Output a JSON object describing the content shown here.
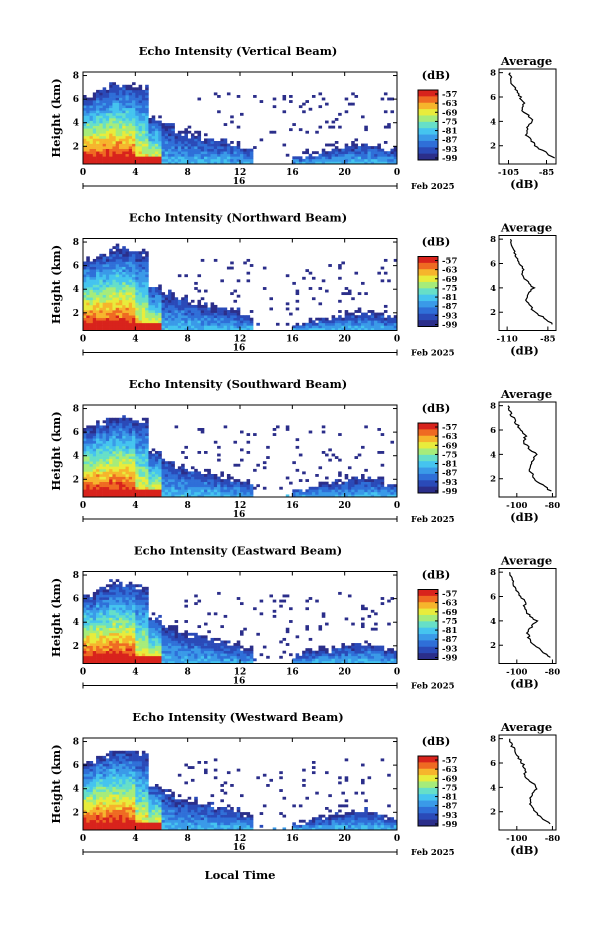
{
  "figure": {
    "xlabel": "Local Time",
    "date_label": "Feb 2025",
    "day_label": "16"
  },
  "chart_data": [
    {
      "type": "heatmap",
      "title": "Echo Intensity (Vertical Beam)",
      "ylabel": "Height (km)",
      "x_ticks": [
        "0",
        "4",
        "8",
        "12",
        "16",
        "20",
        "0"
      ],
      "xlim": [
        0,
        24
      ],
      "y_ticks": [
        "2",
        "4",
        "6",
        "8"
      ],
      "ylim": [
        0.5,
        8.3
      ],
      "colorbar": {
        "unit": "(dB)",
        "ticks": [
          "-57",
          "-63",
          "-69",
          "-75",
          "-81",
          "-87",
          "-93",
          "-99"
        ]
      },
      "average": {
        "title": "Average",
        "xlabel": "(dB)",
        "x_ticks": [
          "-105",
          "-85"
        ],
        "xlim": [
          -110,
          -80
        ],
        "y_ticks": [
          "2",
          "4",
          "6",
          "8"
        ],
        "profile": [
          [
            -81,
            1.0
          ],
          [
            -86,
            1.5
          ],
          [
            -91,
            2.0
          ],
          [
            -93,
            2.5
          ],
          [
            -96,
            3.0
          ],
          [
            -95,
            3.5
          ],
          [
            -92,
            4.0
          ],
          [
            -95,
            4.5
          ],
          [
            -98,
            5.0
          ],
          [
            -97,
            5.5
          ],
          [
            -99,
            6.0
          ],
          [
            -101,
            6.5
          ],
          [
            -103,
            7.0
          ],
          [
            -104,
            7.5
          ],
          [
            -104,
            8.0
          ]
        ]
      },
      "echo_top_km": [
        6.3,
        6.8,
        7.3,
        7.2,
        7.0,
        4.4,
        3.9,
        3.2,
        3.0,
        2.7,
        2.5,
        2.3,
        1.8,
        0,
        0,
        0,
        1.1,
        1.3,
        1.6,
        1.9,
        2.0,
        2.2,
        2.0,
        1.7
      ]
    },
    {
      "type": "heatmap",
      "title": "Echo Intensity (Northward Beam)",
      "ylabel": "Height (km)",
      "x_ticks": [
        "0",
        "4",
        "8",
        "12",
        "16",
        "20",
        "0"
      ],
      "xlim": [
        0,
        24
      ],
      "y_ticks": [
        "2",
        "4",
        "6",
        "8"
      ],
      "ylim": [
        0.5,
        8.3
      ],
      "colorbar": {
        "unit": "(dB)",
        "ticks": [
          "-57",
          "-63",
          "-69",
          "-75",
          "-81",
          "-87",
          "-93",
          "-99"
        ]
      },
      "average": {
        "title": "Average",
        "xlabel": "(dB)",
        "x_ticks": [
          "-110",
          "-85"
        ],
        "xlim": [
          -115,
          -80
        ],
        "y_ticks": [
          "2",
          "4",
          "6",
          "8"
        ],
        "profile": [
          [
            -82,
            1.0
          ],
          [
            -87,
            1.5
          ],
          [
            -93,
            2.0
          ],
          [
            -96,
            2.5
          ],
          [
            -99,
            3.0
          ],
          [
            -97,
            3.5
          ],
          [
            -94,
            4.0
          ],
          [
            -97,
            4.5
          ],
          [
            -101,
            5.0
          ],
          [
            -100,
            5.5
          ],
          [
            -102,
            6.0
          ],
          [
            -104,
            6.5
          ],
          [
            -106,
            7.0
          ],
          [
            -107,
            7.5
          ],
          [
            -108,
            8.0
          ]
        ]
      },
      "echo_top_km": [
        6.5,
        7.0,
        7.5,
        7.4,
        7.1,
        4.3,
        3.8,
        3.3,
        3.0,
        2.6,
        2.4,
        2.2,
        1.7,
        0,
        0,
        0,
        1.0,
        1.3,
        1.5,
        1.8,
        1.9,
        2.1,
        2.0,
        1.6
      ]
    },
    {
      "type": "heatmap",
      "title": "Echo Intensity (Southward Beam)",
      "ylabel": "Height (km)",
      "x_ticks": [
        "0",
        "4",
        "8",
        "12",
        "16",
        "20",
        "0"
      ],
      "xlim": [
        0,
        24
      ],
      "y_ticks": [
        "2",
        "4",
        "6",
        "8"
      ],
      "ylim": [
        0.5,
        8.3
      ],
      "colorbar": {
        "unit": "(dB)",
        "ticks": [
          "-57",
          "-63",
          "-69",
          "-75",
          "-81",
          "-87",
          "-93",
          "-99"
        ]
      },
      "average": {
        "title": "Average",
        "xlabel": "(dB)",
        "x_ticks": [
          "-100",
          "-80"
        ],
        "xlim": [
          -110,
          -78
        ],
        "y_ticks": [
          "2",
          "4",
          "6",
          "8"
        ],
        "profile": [
          [
            -81,
            1.0
          ],
          [
            -86,
            1.5
          ],
          [
            -90,
            2.0
          ],
          [
            -92,
            2.5
          ],
          [
            -93,
            3.0
          ],
          [
            -91,
            3.5
          ],
          [
            -89,
            4.0
          ],
          [
            -93,
            4.5
          ],
          [
            -96,
            5.0
          ],
          [
            -95,
            5.5
          ],
          [
            -98,
            6.0
          ],
          [
            -100,
            6.5
          ],
          [
            -102,
            7.0
          ],
          [
            -104,
            7.5
          ],
          [
            -105,
            8.0
          ]
        ]
      },
      "echo_top_km": [
        6.4,
        6.9,
        7.3,
        7.2,
        7.0,
        4.4,
        3.7,
        3.1,
        2.9,
        2.6,
        2.3,
        2.1,
        1.7,
        0,
        0,
        0,
        1.2,
        1.4,
        1.6,
        1.8,
        2.0,
        2.1,
        1.9,
        1.6
      ]
    },
    {
      "type": "heatmap",
      "title": "Echo Intensity (Eastward Beam)",
      "ylabel": "Height (km)",
      "x_ticks": [
        "0",
        "4",
        "8",
        "12",
        "16",
        "20",
        "0"
      ],
      "xlim": [
        0,
        24
      ],
      "y_ticks": [
        "2",
        "4",
        "6",
        "8"
      ],
      "ylim": [
        0.5,
        8.3
      ],
      "colorbar": {
        "unit": "(dB)",
        "ticks": [
          "-57",
          "-63",
          "-69",
          "-75",
          "-81",
          "-87",
          "-93",
          "-99"
        ]
      },
      "average": {
        "title": "Average",
        "xlabel": "(dB)",
        "x_ticks": [
          "-100",
          "-80"
        ],
        "xlim": [
          -110,
          -78
        ],
        "y_ticks": [
          "2",
          "4",
          "6",
          "8"
        ],
        "profile": [
          [
            -81,
            1.0
          ],
          [
            -86,
            1.5
          ],
          [
            -90,
            2.0
          ],
          [
            -93,
            2.5
          ],
          [
            -94,
            3.0
          ],
          [
            -92,
            3.5
          ],
          [
            -89,
            4.0
          ],
          [
            -93,
            4.5
          ],
          [
            -96,
            5.0
          ],
          [
            -95,
            5.5
          ],
          [
            -98,
            6.0
          ],
          [
            -100,
            6.5
          ],
          [
            -102,
            7.0
          ],
          [
            -103,
            7.5
          ],
          [
            -104,
            8.0
          ]
        ]
      },
      "echo_top_km": [
        6.4,
        6.9,
        7.4,
        7.3,
        7.0,
        4.5,
        3.8,
        3.2,
        3.0,
        2.7,
        2.4,
        2.1,
        1.8,
        0,
        0,
        0,
        1.2,
        1.5,
        1.7,
        1.9,
        2.1,
        2.2,
        2.0,
        1.6
      ]
    },
    {
      "type": "heatmap",
      "title": "Echo Intensity (Westward Beam)",
      "ylabel": "Height (km)",
      "x_ticks": [
        "0",
        "4",
        "8",
        "12",
        "16",
        "20",
        "0"
      ],
      "xlim": [
        0,
        24
      ],
      "y_ticks": [
        "2",
        "4",
        "6",
        "8"
      ],
      "ylim": [
        0.5,
        8.3
      ],
      "colorbar": {
        "unit": "(dB)",
        "ticks": [
          "-57",
          "-63",
          "-69",
          "-75",
          "-81",
          "-87",
          "-93",
          "-99"
        ]
      },
      "average": {
        "title": "Average",
        "xlabel": "(dB)",
        "x_ticks": [
          "-100",
          "-80"
        ],
        "xlim": [
          -110,
          -78
        ],
        "y_ticks": [
          "2",
          "4",
          "6",
          "8"
        ],
        "profile": [
          [
            -81,
            1.0
          ],
          [
            -86,
            1.5
          ],
          [
            -90,
            2.0
          ],
          [
            -92,
            2.5
          ],
          [
            -93,
            3.0
          ],
          [
            -91,
            3.5
          ],
          [
            -89,
            4.0
          ],
          [
            -92,
            4.5
          ],
          [
            -96,
            5.0
          ],
          [
            -95,
            5.5
          ],
          [
            -97,
            6.0
          ],
          [
            -99,
            6.5
          ],
          [
            -101,
            7.0
          ],
          [
            -103,
            7.5
          ],
          [
            -104,
            8.0
          ]
        ]
      },
      "echo_top_km": [
        6.3,
        6.9,
        7.3,
        7.2,
        7.0,
        4.4,
        3.8,
        3.2,
        3.0,
        2.7,
        2.4,
        2.2,
        1.8,
        0,
        0,
        0,
        1.1,
        1.4,
        1.6,
        1.9,
        2.0,
        2.2,
        2.0,
        1.6
      ]
    }
  ],
  "colors": {
    "palette": [
      "#2b2e8a",
      "#2a4ab8",
      "#2f6fd8",
      "#3a9ae8",
      "#45c4ef",
      "#66dfc8",
      "#a6ec7a",
      "#e8ec3c",
      "#f6b52c",
      "#ef6a22",
      "#d8231c"
    ],
    "axis": "#000000"
  }
}
